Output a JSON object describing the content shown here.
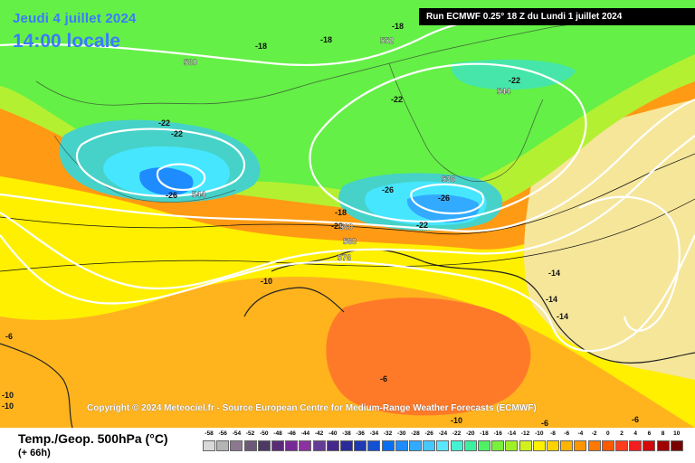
{
  "header": {
    "date": "Jeudi 4 juillet 2024",
    "local_time": "14:00 locale",
    "run_info": "Run ECMWF 0.25° 18 Z du Lundi 1 juillet 2024"
  },
  "copyright": "Copyright © 2024 Meteociel.fr - Source European Centre for Medium-Range Weather Forecasts (ECMWF)",
  "footer": {
    "title": "Temp./Geop. 500hPa (°C)",
    "forecast_step": "(+ 66h)"
  },
  "map_labels": {
    "temperature": [
      "-18",
      "-18",
      "-18",
      "-22",
      "-22",
      "-22",
      "-22",
      "-26",
      "-26",
      "-26",
      "-22",
      "-18",
      "-22",
      "-10",
      "-14",
      "-14",
      "-14",
      "-6",
      "-6",
      "-6",
      "-10",
      "-10",
      "-6",
      "-10"
    ],
    "geopotential": [
      "560",
      "552",
      "544",
      "544",
      "536",
      "560",
      "568",
      "576"
    ]
  },
  "colors": {
    "lines": "#ffffff",
    "runbox_bg": "#000000",
    "title_blue": "#3a7bff"
  },
  "legend": {
    "ticks": [
      "-58",
      "-56",
      "-54",
      "-52",
      "-50",
      "-48",
      "-46",
      "-44",
      "-42",
      "-40",
      "-38",
      "-36",
      "-34",
      "-32",
      "-30",
      "-28",
      "-26",
      "-24",
      "-22",
      "-20",
      "-18",
      "-16",
      "-14",
      "-12",
      "-10",
      "-8",
      "-6",
      "-4",
      "-2",
      "0",
      "2",
      "4",
      "6",
      "8",
      "10"
    ],
    "colors": [
      "#d8d8d8",
      "#b4b4b4",
      "#8c7890",
      "#6c5a78",
      "#4c3a64",
      "#5a2a78",
      "#782896",
      "#8c32a0",
      "#643c96",
      "#46288c",
      "#2a2a9a",
      "#1e3ab4",
      "#1450d2",
      "#0a6ef0",
      "#1e8cff",
      "#32aaff",
      "#46c8ff",
      "#5ae6ff",
      "#46f0d2",
      "#3cf0a0",
      "#50f064",
      "#78f03c",
      "#a0f028",
      "#d2f01e",
      "#fff000",
      "#ffd200",
      "#ffb400",
      "#ff9600",
      "#ff7800",
      "#ff5a00",
      "#ff3c1e",
      "#f01e1e",
      "#d20a0a",
      "#a00000",
      "#780000"
    ]
  }
}
